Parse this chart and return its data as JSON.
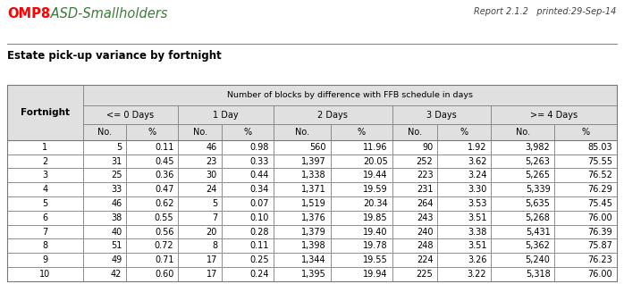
{
  "title_omp": "OMP8",
  "title_asd": " ASD-Smallholders",
  "report_info": "Report 2.1.2   printed:29-Sep-14",
  "subtitle": "Estate pick-up variance by fortnight",
  "header_main": "Number of blocks by difference with FFB schedule in days",
  "col_groups": [
    "<= 0 Days",
    "1 Day",
    "2 Days",
    "3 Days",
    ">= 4 Days"
  ],
  "fortnight_col": "Fortnight",
  "rows": [
    [
      1,
      5,
      0.11,
      46,
      0.98,
      560,
      11.96,
      90,
      1.92,
      3982,
      85.03
    ],
    [
      2,
      31,
      0.45,
      23,
      0.33,
      1397,
      20.05,
      252,
      3.62,
      5263,
      75.55
    ],
    [
      3,
      25,
      0.36,
      30,
      0.44,
      1338,
      19.44,
      223,
      3.24,
      5265,
      76.52
    ],
    [
      4,
      33,
      0.47,
      24,
      0.34,
      1371,
      19.59,
      231,
      3.3,
      5339,
      76.29
    ],
    [
      5,
      46,
      0.62,
      5,
      0.07,
      1519,
      20.34,
      264,
      3.53,
      5635,
      75.45
    ],
    [
      6,
      38,
      0.55,
      7,
      0.1,
      1376,
      19.85,
      243,
      3.51,
      5268,
      76.0
    ],
    [
      7,
      40,
      0.56,
      20,
      0.28,
      1379,
      19.4,
      240,
      3.38,
      5431,
      76.39
    ],
    [
      8,
      51,
      0.72,
      8,
      0.11,
      1398,
      19.78,
      248,
      3.51,
      5362,
      75.87
    ],
    [
      9,
      49,
      0.71,
      17,
      0.25,
      1344,
      19.55,
      224,
      3.26,
      5240,
      76.23
    ],
    [
      10,
      42,
      0.6,
      17,
      0.24,
      1395,
      19.94,
      225,
      3.22,
      5318,
      76.0
    ]
  ],
  "bg_color": "#ffffff",
  "header_bg": "#e0e0e0",
  "border_color": "#777777",
  "omp_color": "#ff0000",
  "asd_color": "#3a7d3a",
  "text_color": "#000000",
  "report_color": "#444444",
  "title_fontsize": 10.5,
  "subtitle_fontsize": 8.5,
  "table_fontsize": 7.0,
  "report_fontsize": 7.0
}
